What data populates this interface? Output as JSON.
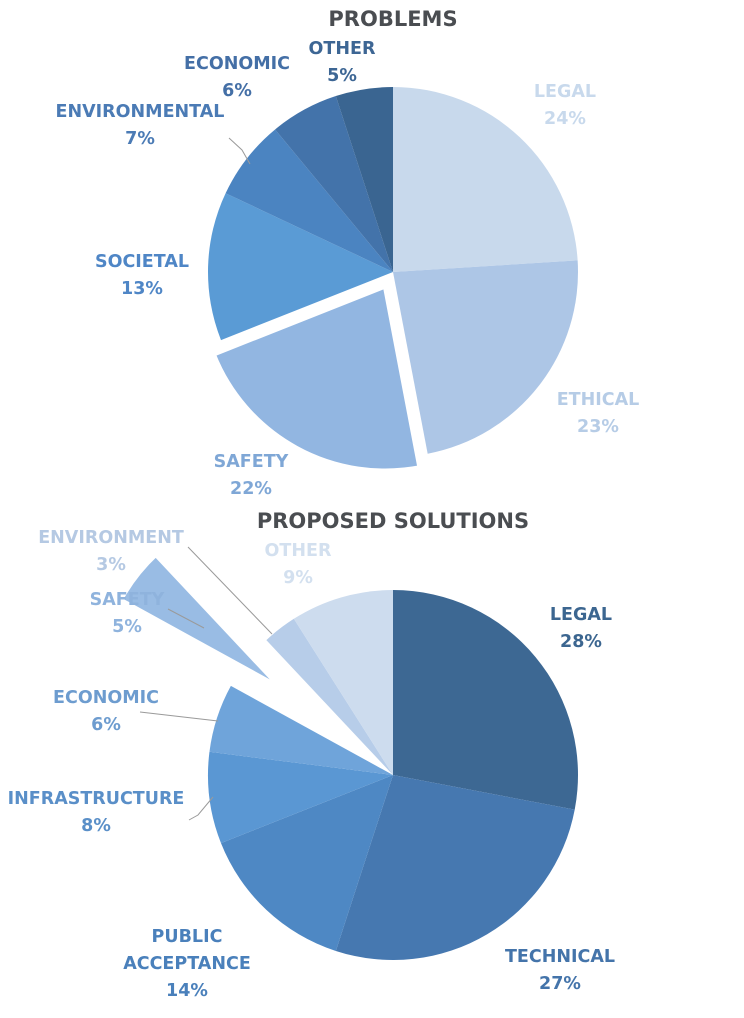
{
  "chart_data": [
    {
      "type": "pie",
      "title": "PROBLEMS",
      "unit": "%",
      "slices": [
        {
          "label": "LEGAL",
          "value": 24,
          "pct_label": "24%",
          "color": "#c8d9ec",
          "text_color": "#c8d9ec",
          "exploded": false
        },
        {
          "label": "ETHICAL",
          "value": 23,
          "pct_label": "23%",
          "color": "#adc6e6",
          "text_color": "#b6cce6",
          "exploded": false
        },
        {
          "label": "SAFETY",
          "value": 22,
          "pct_label": "22%",
          "color": "#92b6e1",
          "text_color": "#7fa7d6",
          "exploded": true
        },
        {
          "label": "SOCIETAL",
          "value": 13,
          "pct_label": "13%",
          "color": "#5a9bd5",
          "text_color": "#4f86c6",
          "exploded": false
        },
        {
          "label": "ENVIRONMENTAL",
          "value": 7,
          "pct_label": "7%",
          "color": "#4b84c1",
          "text_color": "#4b7bb5",
          "exploded": false
        },
        {
          "label": "ECONOMIC",
          "value": 6,
          "pct_label": "6%",
          "color": "#4373aa",
          "text_color": "#446fa6",
          "exploded": false
        },
        {
          "label": "OTHER",
          "value": 5,
          "pct_label": "5%",
          "color": "#3a6591",
          "text_color": "#3d6694",
          "exploded": false
        }
      ]
    },
    {
      "type": "pie",
      "title": "PROPOSED SOLUTIONS",
      "unit": "%",
      "slices": [
        {
          "label": "LEGAL",
          "value": 28,
          "pct_label": "28%",
          "color": "#3d6893",
          "text_color": "#3c6690",
          "exploded": false
        },
        {
          "label": "TECHNICAL",
          "value": 27,
          "pct_label": "27%",
          "color": "#4678b0",
          "text_color": "#4474aa",
          "exploded": false
        },
        {
          "label": "PUBLIC ACCEPTANCE",
          "value": 14,
          "pct_label": "14%",
          "color": "#4e88c4",
          "text_color": "#4a80bb",
          "exploded": false
        },
        {
          "label": "INFRASTRUCTURE",
          "value": 8,
          "pct_label": "8%",
          "color": "#5a97d3",
          "text_color": "#5a8fc8",
          "exploded": false
        },
        {
          "label": "ECONOMIC",
          "value": 6,
          "pct_label": "6%",
          "color": "#6fa4da",
          "text_color": "#6d9ccf",
          "exploded": false
        },
        {
          "label": "SAFETY",
          "value": 5,
          "pct_label": "5%",
          "color": "#99bce4",
          "text_color": "#8fb3dd",
          "exploded": true
        },
        {
          "label": "ENVIRONMENT",
          "value": 3,
          "pct_label": "3%",
          "color": "#b7cde9",
          "text_color": "#b5c9e3",
          "exploded": false
        },
        {
          "label": "OTHER",
          "value": 9,
          "pct_label": "9%",
          "color": "#cddcee",
          "text_color": "#d3e0ef",
          "exploded": false
        }
      ]
    }
  ]
}
